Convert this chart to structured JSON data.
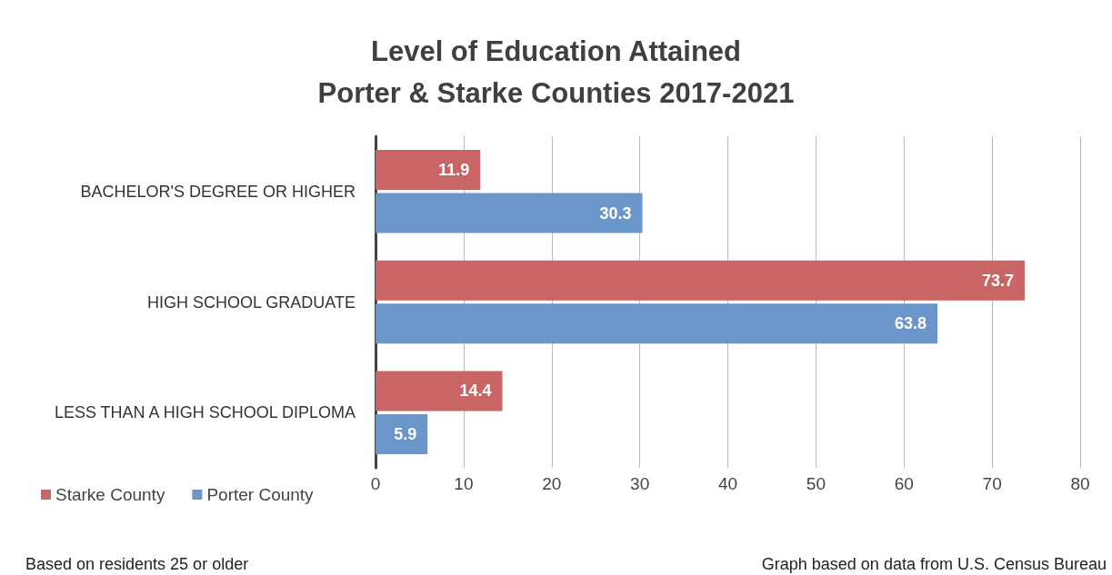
{
  "chart_data": {
    "type": "bar",
    "orientation": "horizontal",
    "title": "Level of Education Attained\nPorter & Starke Counties 2017-2021",
    "categories": [
      "BACHELOR'S DEGREE OR HIGHER",
      "HIGH SCHOOL GRADUATE",
      "LESS THAN A HIGH SCHOOL DIPLOMA"
    ],
    "series": [
      {
        "name": "Starke County",
        "color": "#c96564",
        "values": [
          11.9,
          73.7,
          14.4
        ]
      },
      {
        "name": "Porter County",
        "color": "#6a96c9",
        "values": [
          30.3,
          63.8,
          5.9
        ]
      }
    ],
    "xlim": [
      0,
      80
    ],
    "xticks": [
      0,
      10,
      20,
      30,
      40,
      50,
      60,
      70,
      80
    ],
    "grid": "x",
    "legend": "bottom left",
    "data_labels": true,
    "annotations": [
      "Based on residents 25 or older",
      "Graph based on data from U.S. Census Bureau"
    ]
  }
}
